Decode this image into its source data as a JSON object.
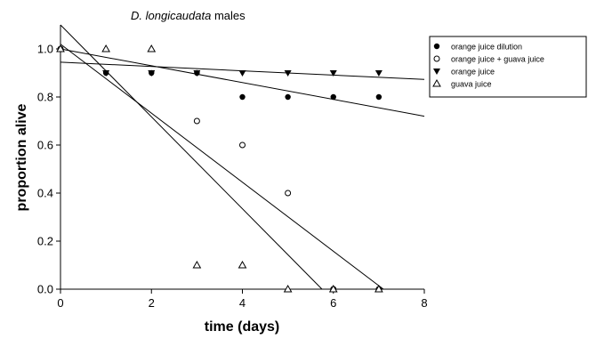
{
  "chart_data": {
    "type": "scatter",
    "title_italic": "D. longicaudata",
    "title_rest": " males",
    "xlabel": "time (days)",
    "ylabel": "proportion alive",
    "xlim": [
      0,
      8
    ],
    "ylim": [
      0,
      1.1
    ],
    "x_ticks": [
      "0",
      "2",
      "4",
      "6",
      "8"
    ],
    "y_ticks": [
      "0.0",
      "0.2",
      "0.4",
      "0.6",
      "0.8",
      "1.0"
    ],
    "grid": false,
    "legend_position": "top-right",
    "series": [
      {
        "name": "orange juice dilution",
        "marker": "filled-circle",
        "points": [
          [
            0,
            1.0
          ],
          [
            1,
            0.9
          ],
          [
            2,
            0.9
          ],
          [
            3,
            0.9
          ],
          [
            4,
            0.8
          ],
          [
            5,
            0.8
          ],
          [
            6,
            0.8
          ],
          [
            7,
            0.8
          ]
        ]
      },
      {
        "name": "orange juice + guava juice",
        "marker": "open-circle",
        "points": [
          [
            0,
            1.0
          ],
          [
            3,
            0.7
          ],
          [
            4,
            0.6
          ],
          [
            5,
            0.4
          ],
          [
            6,
            0.0
          ],
          [
            7,
            0.0
          ]
        ]
      },
      {
        "name": "orange juice",
        "marker": "filled-triangle-down",
        "points": [
          [
            1,
            0.9
          ],
          [
            2,
            0.9
          ],
          [
            3,
            0.9
          ],
          [
            4,
            0.9
          ],
          [
            5,
            0.9
          ],
          [
            6,
            0.9
          ],
          [
            7,
            0.9
          ]
        ]
      },
      {
        "name": "guava juice",
        "marker": "open-triangle-up",
        "points": [
          [
            0,
            1.0
          ],
          [
            1,
            1.0
          ],
          [
            2,
            1.0
          ],
          [
            3,
            0.1
          ],
          [
            4,
            0.1
          ],
          [
            5,
            0.0
          ],
          [
            6,
            0.0
          ],
          [
            7,
            0.0
          ]
        ]
      }
    ],
    "regression_lines": [
      {
        "from": [
          0,
          1.0
        ],
        "to": [
          8,
          0.72
        ]
      },
      {
        "from": [
          0,
          0.945
        ],
        "to": [
          8,
          0.873
        ]
      },
      {
        "from": [
          0,
          1.02
        ],
        "to": [
          7.1,
          0.0
        ]
      },
      {
        "from": [
          0,
          1.1
        ],
        "to": [
          5.75,
          0.0
        ]
      }
    ]
  }
}
